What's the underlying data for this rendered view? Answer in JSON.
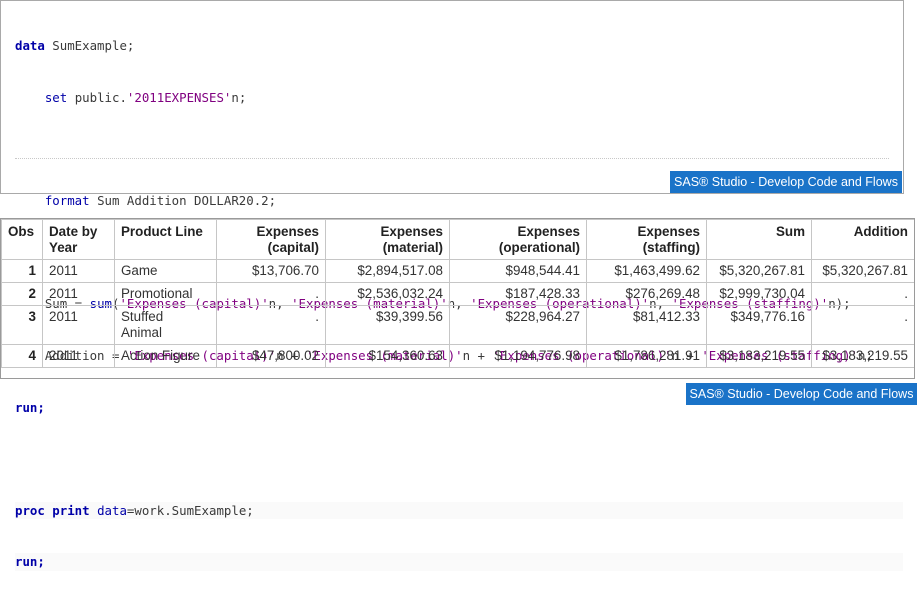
{
  "code": {
    "line1": {
      "kw": "data",
      "rest": " SumExample;"
    },
    "line2": {
      "indent": "    ",
      "kw": "set",
      "a": " public.",
      "str": "'2011EXPENSES'",
      "b": "n;"
    },
    "line4": {
      "indent": "    ",
      "kw": "format",
      "rest": " Sum Addition DOLLAR20.2;"
    },
    "line6": {
      "indent": "    ",
      "a": "Sum = ",
      "fn": "sum",
      "b": "(",
      "s1": "'Expenses (capital)'",
      "c1": "n, ",
      "s2": "'Expenses (material)'",
      "c2": "n, ",
      "s3": "'Expenses (operational)'",
      "c3": "n, ",
      "s4": "'Expenses (staffing)'",
      "c4": "n);"
    },
    "line7": {
      "indent": "    ",
      "a": "Addition = ",
      "s1": "'Expenses (capital)'",
      "c1": "n + ",
      "s2": "'Expenses (material)'",
      "c2": "n + ",
      "s3": "'Expenses (operational)'",
      "c3": "n + ",
      "s4": "'Expenses (staffing)'",
      "c4": "n;"
    },
    "line8": {
      "kw": "run;"
    },
    "line10": {
      "kw": "proc print",
      "a": " ",
      "kw2": "data",
      "b": "=work.SumExample;"
    },
    "line11": {
      "kw": "run;"
    }
  },
  "badge_label": "SAS® Studio - Develop Code and Flows",
  "table": {
    "headers": {
      "obs": "Obs",
      "date1": "Date by",
      "date2": "Year",
      "product": "Product Line",
      "cap1": "Expenses",
      "cap2": "(capital)",
      "mat1": "Expenses",
      "mat2": "(material)",
      "ope1": "Expenses",
      "ope2": "(operational)",
      "sta1": "Expenses",
      "sta2": "(staffing)",
      "sum": "Sum",
      "add": "Addition"
    },
    "rows": [
      {
        "obs": "1",
        "year": "2011",
        "product": "Game",
        "product2": "",
        "capital": "$13,706.70",
        "material": "$2,894,517.08",
        "operational": "$948,544.41",
        "staffing": "$1,463,499.62",
        "sum": "$5,320,267.81",
        "addition": "$5,320,267.81"
      },
      {
        "obs": "2",
        "year": "2011",
        "product": "Promotional",
        "product2": "",
        "capital": ".",
        "material": "$2,536,032.24",
        "operational": "$187,428.33",
        "staffing": "$276,269.48",
        "sum": "$2,999,730.04",
        "addition": "."
      },
      {
        "obs": "3",
        "year": "2011",
        "product": "Stuffed",
        "product2": "Animal",
        "capital": ".",
        "material": "$39,399.56",
        "operational": "$228,964.27",
        "staffing": "$81,412.33",
        "sum": "$349,776.16",
        "addition": "."
      },
      {
        "obs": "4",
        "year": "2011",
        "product": "Action Figure",
        "product2": "",
        "capital": "$47,800.02",
        "material": "$154,360.63",
        "operational": "$1,194,776.98",
        "staffing": "$1,786,281.91",
        "sum": "$3,183,219.55",
        "addition": "$3,183,219.55"
      }
    ]
  },
  "colors": {
    "badge": "#1a73c8",
    "keyword": "#0000a8",
    "string": "#800080"
  }
}
